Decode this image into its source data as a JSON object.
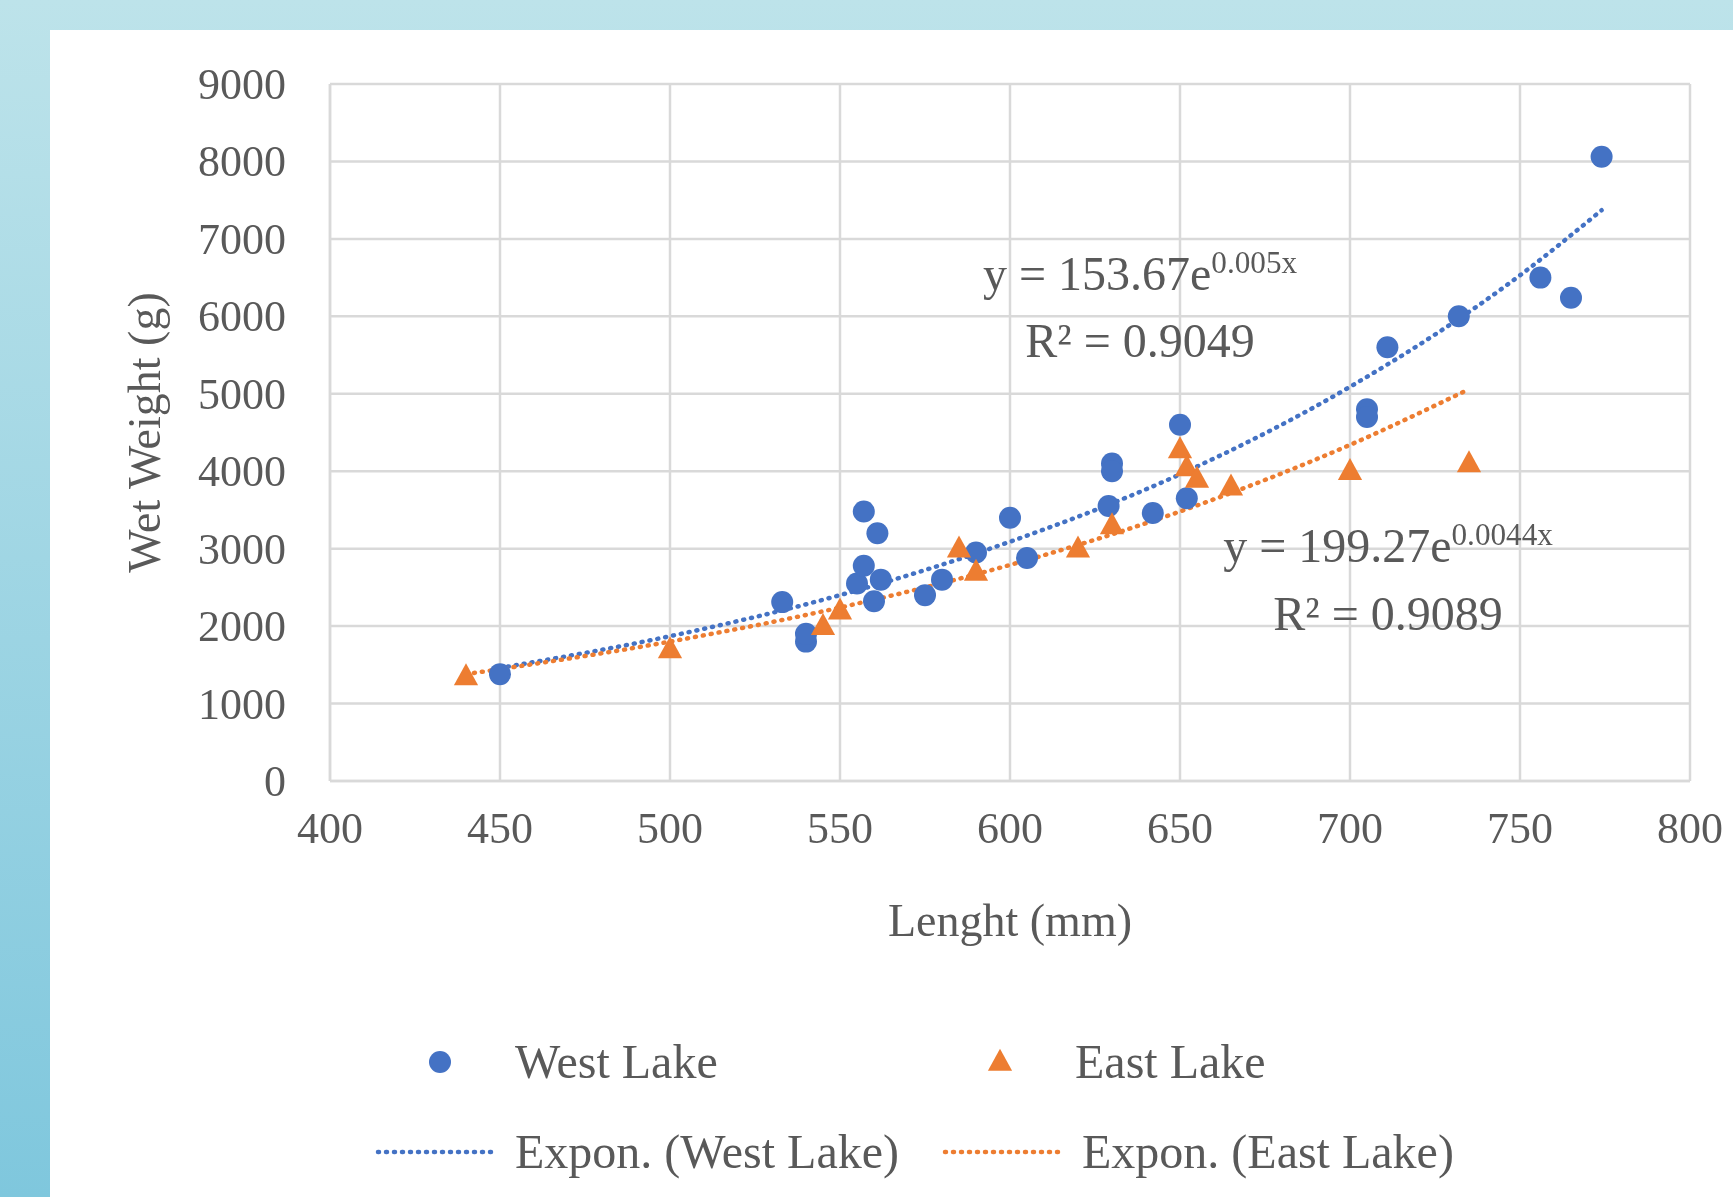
{
  "chart_data": {
    "type": "scatter",
    "xlabel": "Lenght  (mm)",
    "ylabel": "Wet Weight  (g)",
    "xlim": [
      400,
      800
    ],
    "xticks": [
      400,
      450,
      500,
      550,
      600,
      650,
      700,
      750,
      800
    ],
    "ylim": [
      0,
      9000
    ],
    "yticks": [
      0,
      1000,
      2000,
      3000,
      4000,
      5000,
      6000,
      7000,
      8000,
      9000
    ],
    "grid": true,
    "legend": "bottom",
    "series": [
      {
        "name": "West Lake",
        "color": "#4472c4",
        "marker": "circle",
        "x": [
          450,
          533,
          540,
          540,
          555,
          557,
          557,
          560,
          561,
          562,
          575,
          580,
          590,
          600,
          605,
          629,
          630,
          630,
          642,
          650,
          652,
          705,
          705,
          711,
          732,
          756,
          765,
          774
        ],
        "values": [
          1380,
          2310,
          1800,
          1900,
          2550,
          3480,
          2780,
          2320,
          3200,
          2600,
          2400,
          2600,
          2950,
          3400,
          2880,
          3550,
          4100,
          4000,
          3460,
          4600,
          3650,
          4800,
          4700,
          5600,
          6000,
          6500,
          6240,
          8060
        ]
      },
      {
        "name": "East Lake",
        "color": "#ed7d31",
        "marker": "triangle",
        "x": [
          440,
          500,
          545,
          550,
          585,
          590,
          620,
          630,
          650,
          652,
          655,
          665,
          700,
          735
        ],
        "values": [
          1350,
          1700,
          2000,
          2200,
          3000,
          2700,
          3000,
          3300,
          4280,
          4050,
          3900,
          3800,
          4000,
          4100
        ]
      },
      {
        "name": "Expon. (West Lake)",
        "type": "line",
        "line_style": "dotted",
        "color": "#4472c4",
        "x": [
          450,
          500,
          550,
          600,
          650,
          700,
          750,
          774
        ],
        "values": [
          1460,
          1870,
          2400,
          3090,
          3960,
          5090,
          6530,
          7370
        ]
      },
      {
        "name": "Expon. (East Lake)",
        "type": "line",
        "line_style": "dotted",
        "color": "#ed7d31",
        "x": [
          440,
          500,
          550,
          600,
          650,
          700,
          735
        ],
        "values": [
          1380,
          1800,
          2240,
          2790,
          3480,
          4340,
          5060
        ]
      }
    ],
    "annotations": [
      "y = 153.67e$^{0.005x}$",
      "R² = 0.9049",
      "y = 199.27e$^{0.0044x}$",
      "R² = 0.9089"
    ]
  }
}
